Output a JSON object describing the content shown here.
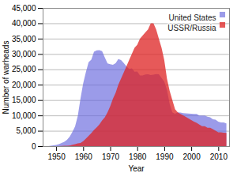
{
  "chart_data": {
    "type": "area",
    "xlabel": "Year",
    "ylabel": "Number of warheads",
    "xlim": [
      1945,
      2014
    ],
    "ylim": [
      0,
      45000
    ],
    "xticks": [
      1950,
      1960,
      1970,
      1980,
      1990,
      2000,
      2010
    ],
    "yticks": [
      0,
      {
        "value": 5000,
        "label": "5,000"
      },
      {
        "value": 10000,
        "label": "10,000"
      },
      {
        "value": 15000,
        "label": "15,000"
      },
      {
        "value": 20000,
        "label": "20,000"
      },
      {
        "value": 25000,
        "label": "25,000"
      },
      {
        "value": 30000,
        "label": "30,000"
      },
      {
        "value": 35000,
        "label": "35,000"
      },
      {
        "value": 40000,
        "label": "40,000"
      },
      {
        "value": 45000,
        "label": "45,000"
      }
    ],
    "grid": "y",
    "legend": "upper right",
    "series": [
      {
        "name": "United States",
        "color": "#6666dd",
        "x": [
          1945,
          1946,
          1947,
          1948,
          1949,
          1950,
          1951,
          1952,
          1953,
          1954,
          1955,
          1956,
          1957,
          1958,
          1959,
          1960,
          1961,
          1962,
          1963,
          1964,
          1965,
          1966,
          1967,
          1968,
          1969,
          1970,
          1971,
          1972,
          1973,
          1974,
          1975,
          1976,
          1977,
          1978,
          1979,
          1980,
          1981,
          1982,
          1983,
          1984,
          1985,
          1986,
          1987,
          1988,
          1989,
          1990,
          1991,
          1992,
          1993,
          1994,
          1995,
          1996,
          1997,
          1998,
          1999,
          2000,
          2001,
          2002,
          2003,
          2004,
          2005,
          2006,
          2007,
          2008,
          2009,
          2010,
          2011,
          2012,
          2013
        ],
        "values": [
          6,
          11,
          32,
          110,
          235,
          369,
          640,
          1005,
          1436,
          2063,
          3057,
          4618,
          6444,
          9822,
          15468,
          20434,
          24111,
          27297,
          28133,
          30751,
          31175,
          31255,
          30893,
          28884,
          26910,
          26662,
          26500,
          27000,
          28335,
          28000,
          27052,
          25956,
          25131,
          25300,
          24243,
          24304,
          23031,
          23000,
          23305,
          23400,
          23135,
          23254,
          23490,
          23410,
          22174,
          21004,
          18306,
          13731,
          11012,
          10563,
          10982,
          10953,
          10729,
          10656,
          10577,
          10535,
          10491,
          10468,
          9938,
          9960,
          9960,
          9552,
          9400,
          8748,
          8600,
          8000,
          7700,
          7700,
          7400
        ]
      },
      {
        "name": "USSR/Russia",
        "color": "#dd2222",
        "x": [
          1949,
          1950,
          1951,
          1952,
          1953,
          1954,
          1955,
          1956,
          1957,
          1958,
          1959,
          1960,
          1961,
          1962,
          1963,
          1964,
          1965,
          1966,
          1967,
          1968,
          1969,
          1970,
          1971,
          1972,
          1973,
          1974,
          1975,
          1976,
          1977,
          1978,
          1979,
          1980,
          1981,
          1982,
          1983,
          1984,
          1985,
          1986,
          1987,
          1988,
          1989,
          1990,
          1991,
          1992,
          1993,
          1994,
          1995,
          1996,
          1997,
          1998,
          1999,
          2000,
          2001,
          2002,
          2003,
          2004,
          2005,
          2006,
          2007,
          2008,
          2009,
          2010,
          2011,
          2012,
          2013
        ],
        "values": [
          1,
          5,
          25,
          50,
          120,
          150,
          200,
          426,
          660,
          869,
          1060,
          1627,
          2471,
          3322,
          4238,
          5242,
          6129,
          7089,
          8339,
          9399,
          11000,
          13000,
          15455,
          17385,
          20000,
          22000,
          24000,
          26000,
          28000,
          30000,
          32000,
          33000,
          35000,
          36000,
          37000,
          38000,
          40000,
          40000,
          38000,
          35000,
          32000,
          28000,
          22000,
          18000,
          15000,
          12000,
          11000,
          10500,
          10000,
          9500,
          9000,
          8500,
          8000,
          7600,
          7000,
          6500,
          6500,
          6000,
          6000,
          5500,
          5000,
          4500,
          4500,
          4400,
          4300
        ]
      }
    ]
  }
}
